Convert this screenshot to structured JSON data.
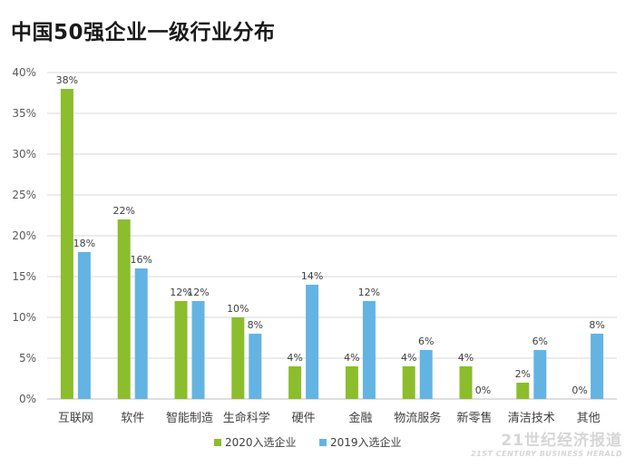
{
  "chart_data": {
    "type": "bar",
    "title": "中国50强企业一级行业分布",
    "xlabel": "",
    "ylabel": "",
    "ylim": [
      0,
      40
    ],
    "yticks": [
      0,
      5,
      10,
      15,
      20,
      25,
      30,
      35,
      40
    ],
    "ytick_suffix": "%",
    "grid": true,
    "legend_position": "bottom-center",
    "categories": [
      "互联网",
      "软件",
      "智能制造",
      "生命科学",
      "硬件",
      "金融",
      "物流服务",
      "新零售",
      "清洁技术",
      "其他"
    ],
    "series": [
      {
        "name": "2020入选企业",
        "color": "#8cbd2d",
        "values": [
          38,
          22,
          12,
          10,
          4,
          4,
          4,
          4,
          2,
          0
        ]
      },
      {
        "name": "2019入选企业",
        "color": "#63b4e3",
        "values": [
          18,
          16,
          12,
          8,
          14,
          12,
          6,
          0,
          6,
          8
        ]
      }
    ]
  },
  "watermark": {
    "main": "21世纪经济报道",
    "sub": "21ST CENTURY BUSINESS HERALD"
  }
}
